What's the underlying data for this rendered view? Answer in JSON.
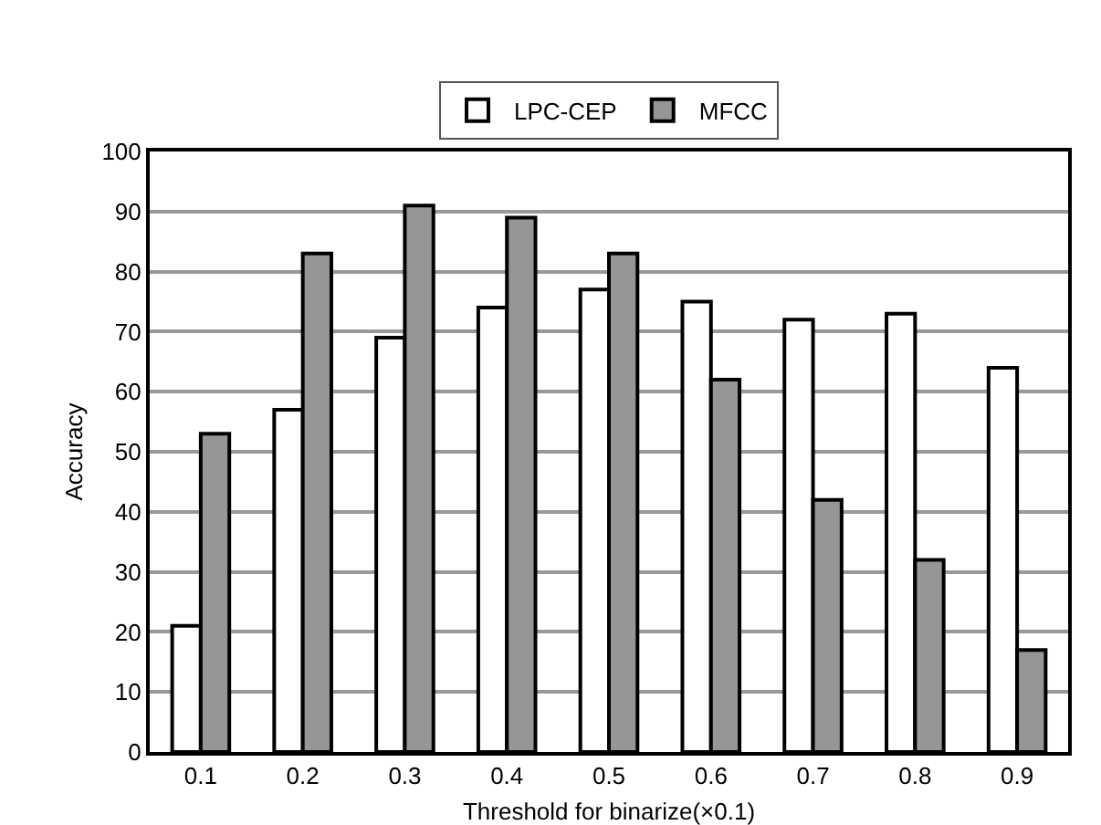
{
  "chart_data": {
    "type": "bar",
    "xlabel": "Threshold for binarize(×0.1)",
    "ylabel": "Accuracy",
    "categories": [
      "0.1",
      "0.2",
      "0.3",
      "0.4",
      "0.5",
      "0.6",
      "0.7",
      "0.8",
      "0.9"
    ],
    "series": [
      {
        "name": "LPC-CEP",
        "color": "#ffffff",
        "values": [
          21,
          57,
          69,
          74,
          77,
          75,
          72,
          73,
          64
        ]
      },
      {
        "name": "MFCC",
        "color": "#969696",
        "values": [
          53,
          83,
          91,
          89,
          83,
          62,
          42,
          32,
          17
        ]
      }
    ],
    "ylim": [
      0,
      100
    ],
    "yticks": [
      0,
      10,
      20,
      30,
      40,
      50,
      60,
      70,
      80,
      90,
      100
    ],
    "grid": "y",
    "legend": "top"
  }
}
